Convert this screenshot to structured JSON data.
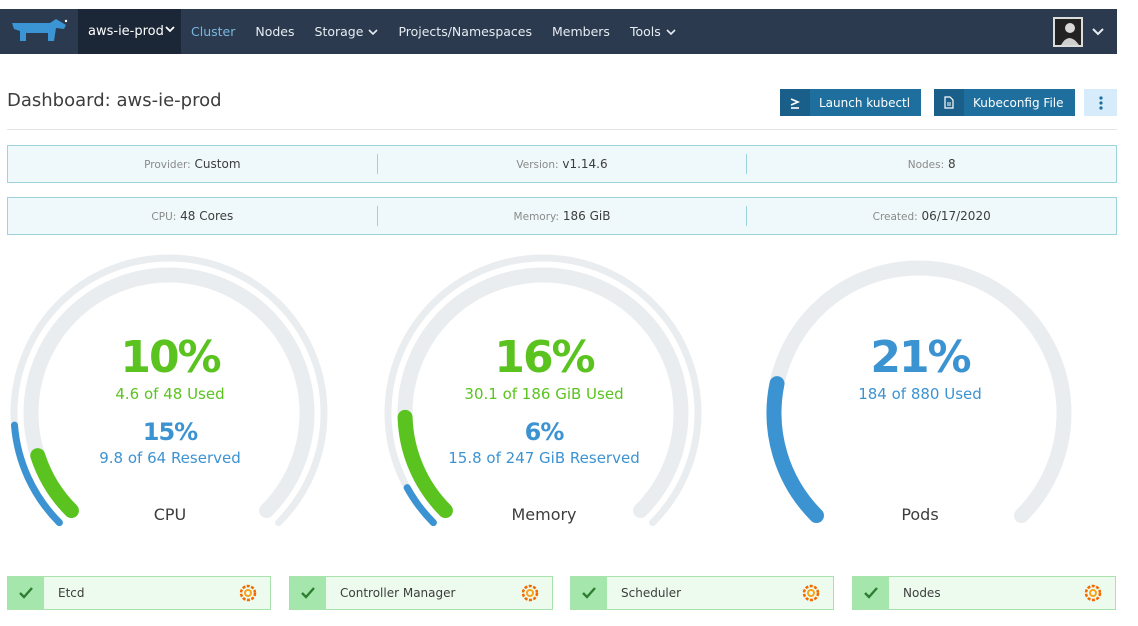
{
  "nav": {
    "cluster": "aws-ie-prod",
    "items": [
      {
        "label": "Cluster",
        "active": true,
        "dropdown": false
      },
      {
        "label": "Nodes",
        "active": false,
        "dropdown": false
      },
      {
        "label": "Storage",
        "active": false,
        "dropdown": true
      },
      {
        "label": "Projects/Namespaces",
        "active": false,
        "dropdown": false
      },
      {
        "label": "Members",
        "active": false,
        "dropdown": false
      },
      {
        "label": "Tools",
        "active": false,
        "dropdown": true
      }
    ]
  },
  "header": {
    "title": "Dashboard: aws-ie-prod",
    "kubectl_label": "Launch kubectl",
    "kubeconfig_label": "Kubeconfig File"
  },
  "info": {
    "provider": {
      "key": "Provider:",
      "value": "Custom"
    },
    "version": {
      "key": "Version:",
      "value": "v1.14.6"
    },
    "nodes": {
      "key": "Nodes:",
      "value": "8"
    },
    "cpu": {
      "key": "CPU:",
      "value": "48 Cores"
    },
    "memory": {
      "key": "Memory:",
      "value": "186 GiB"
    },
    "created": {
      "key": "Created:",
      "value": "06/17/2020"
    }
  },
  "gauges": {
    "cpu": {
      "title": "CPU",
      "used_pct": "10%",
      "used_text": "4.6 of 48 Used",
      "used_fraction": 0.1,
      "reserved_pct": "15%",
      "reserved_text": "9.8 of 64 Reserved",
      "reserved_fraction": 0.15
    },
    "memory": {
      "title": "Memory",
      "used_pct": "16%",
      "used_text": "30.1 of 186 GiB Used",
      "used_fraction": 0.16,
      "reserved_pct": "6%",
      "reserved_text": "15.8 of 247 GiB Reserved",
      "reserved_fraction": 0.06
    },
    "pods": {
      "title": "Pods",
      "used_pct": "21%",
      "used_text": "184 of 880 Used",
      "used_fraction": 0.21
    }
  },
  "components": [
    {
      "name": "Etcd",
      "status": "ok"
    },
    {
      "name": "Controller Manager",
      "status": "ok"
    },
    {
      "name": "Scheduler",
      "status": "ok"
    },
    {
      "name": "Nodes",
      "status": "ok"
    }
  ],
  "colors": {
    "nav_bg": "#2b3a4e",
    "primary": "#1f6f9e",
    "used": "#5bc31f",
    "reserved": "#3c93d2",
    "track": "#eaedef",
    "ok": "#a5e6ac"
  }
}
